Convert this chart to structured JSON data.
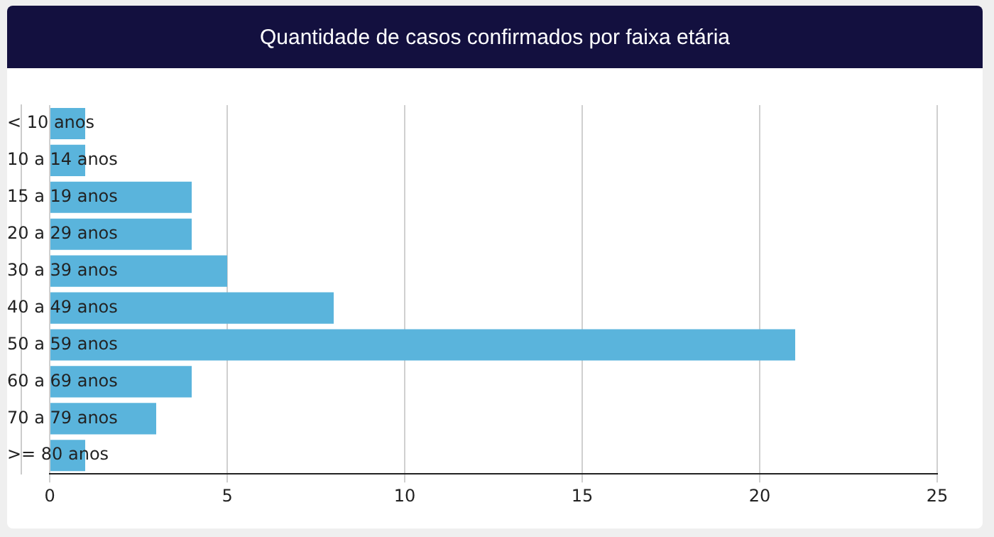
{
  "chart_data": {
    "type": "bar",
    "orientation": "horizontal",
    "title": "Quantidade de casos confirmados por faixa etária",
    "categories": [
      "< 10 anos",
      "10 a 14 anos",
      "15 a 19 anos",
      "20 a 29 anos",
      "30 a 39 anos",
      "40 a 49 anos",
      "50 a 59 anos",
      "60 a 69 anos",
      "70 a 79 anos",
      ">= 80 anos"
    ],
    "values": [
      1,
      1,
      4,
      4,
      5,
      8,
      21,
      4,
      3,
      1
    ],
    "color": "#5ab4dc",
    "xlim": [
      0,
      25
    ],
    "xticks": [
      0,
      5,
      10,
      15,
      20,
      25
    ],
    "grid": "x",
    "legend": false
  }
}
